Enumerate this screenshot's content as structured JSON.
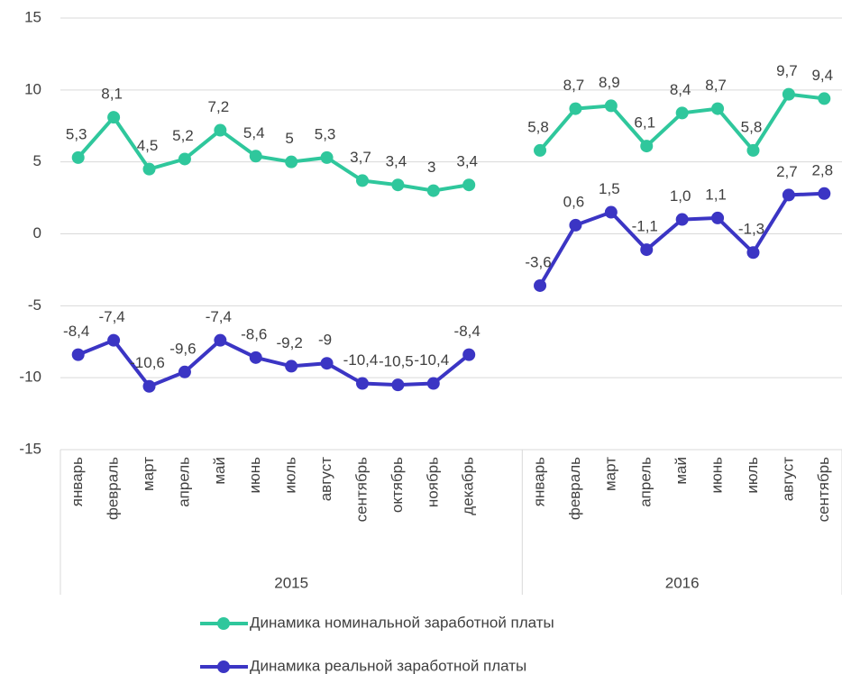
{
  "chart_data": {
    "type": "line",
    "categories": [
      "январь",
      "февраль",
      "март",
      "апрель",
      "май",
      "июнь",
      "июль",
      "август",
      "сентябрь",
      "октябрь",
      "ноябрь",
      "декабрь",
      null,
      "январь",
      "февраль",
      "март",
      "апрель",
      "май",
      "июнь",
      "июль",
      "август",
      "сентябрь"
    ],
    "groups": [
      {
        "label": "2015",
        "size": 13
      },
      {
        "label": "2016",
        "size": 9
      }
    ],
    "series": [
      {
        "name": "Динамика номинальной заработной платы",
        "color": "#2fc79c",
        "values": [
          5.3,
          8.1,
          4.5,
          5.2,
          7.2,
          5.4,
          5,
          5.3,
          3.7,
          3.4,
          3,
          3.4,
          null,
          5.8,
          8.7,
          8.9,
          6.1,
          8.4,
          8.7,
          5.8,
          9.7,
          9.4
        ],
        "value_labels": [
          "5,3",
          "8,1",
          "4,5",
          "5,2",
          "7,2",
          "5,4",
          "5",
          "5,3",
          "3,7",
          "3,4",
          "3",
          "3,4",
          null,
          "5,8",
          "8,7",
          "8,9",
          "6,1",
          "8,4",
          "8,7",
          "5,8",
          "9,7",
          "9,4"
        ]
      },
      {
        "name": "Динамика реальной заработной платы",
        "color": "#3b35c4",
        "values": [
          -8.4,
          -7.4,
          -10.6,
          -9.6,
          -7.4,
          -8.6,
          -9.2,
          -9,
          -10.4,
          -10.5,
          -10.4,
          -8.4,
          null,
          -3.6,
          0.6,
          1.5,
          -1.1,
          1.0,
          1.1,
          -1.3,
          2.7,
          2.8
        ],
        "value_labels": [
          "-8,4",
          "-7,4",
          "-10,6",
          "-9,6",
          "-7,4",
          "-8,6",
          "-9,2",
          "-9",
          "-10,4",
          "-10,5",
          "-10,4",
          "-8,4",
          null,
          "-3,6",
          "0,6",
          "1,5",
          "-1,1",
          "1,0",
          "1,1",
          "-1,3",
          "2,7",
          "2,8"
        ]
      }
    ],
    "ylim": [
      -15,
      15
    ],
    "yticks": [
      -15,
      -10,
      -5,
      0,
      5,
      10,
      15
    ],
    "grid": true
  }
}
